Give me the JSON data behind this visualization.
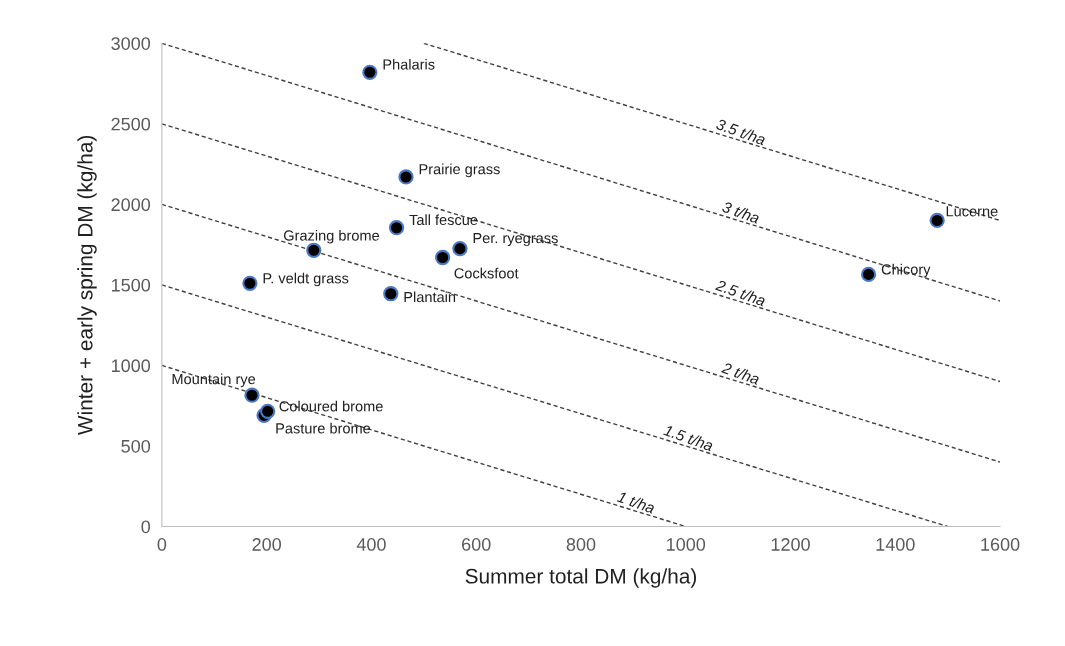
{
  "chart_data": {
    "type": "scatter",
    "xlabel": "Summer total DM (kg/ha)",
    "ylabel": "Winter + early spring DM (kg/ha)",
    "xlim": [
      0,
      1600
    ],
    "ylim": [
      0,
      3000
    ],
    "xticks": [
      0,
      200,
      400,
      600,
      800,
      1000,
      1200,
      1400,
      1600
    ],
    "yticks": [
      0,
      500,
      1000,
      1500,
      2000,
      2500,
      3000
    ],
    "grid": false,
    "legend": false,
    "series": [
      {
        "marker": "circle",
        "color": "#000000",
        "x": [
          397,
          466,
          448,
          290,
          569,
          536,
          168,
          437,
          172,
          202,
          195,
          1480,
          1349
        ],
        "values": [
          2820,
          2170,
          1855,
          1715,
          1725,
          1670,
          1510,
          1445,
          815,
          715,
          690,
          1900,
          1565
        ]
      },
      {
        "type": "line",
        "name": "1 t/ha",
        "color": "#404040",
        "line_style": "dashed",
        "x": [
          0,
          1000
        ],
        "values": [
          1000,
          0
        ]
      },
      {
        "type": "line",
        "name": "1.5 t/ha",
        "color": "#404040",
        "line_style": "dashed",
        "x": [
          0,
          1500
        ],
        "values": [
          1500,
          0
        ]
      },
      {
        "type": "line",
        "name": "2 t/ha",
        "color": "#404040",
        "line_style": "dashed",
        "x": [
          0,
          1600
        ],
        "values": [
          2000,
          400
        ]
      },
      {
        "type": "line",
        "name": "2.5 t/ha",
        "color": "#404040",
        "line_style": "dashed",
        "x": [
          0,
          1600
        ],
        "values": [
          2500,
          900
        ]
      },
      {
        "type": "line",
        "name": "3 t/ha",
        "color": "#404040",
        "line_style": "dashed",
        "x": [
          0,
          1600
        ],
        "values": [
          3000,
          1400
        ]
      },
      {
        "type": "line",
        "name": "3.5 t/ha",
        "color": "#404040",
        "line_style": "dashed",
        "x": [
          500,
          1600
        ],
        "values": [
          3000,
          1900
        ]
      }
    ],
    "annotations": [
      {
        "text": "Phalaris",
        "x": 397,
        "y": 2820
      },
      {
        "text": "Prairie grass",
        "x": 466,
        "y": 2170
      },
      {
        "text": "Tall fescue",
        "x": 448,
        "y": 1855
      },
      {
        "text": "Grazing brome",
        "x": 290,
        "y": 1715
      },
      {
        "text": "Per. ryegrass",
        "x": 569,
        "y": 1725
      },
      {
        "text": "Cocksfoot",
        "x": 536,
        "y": 1670
      },
      {
        "text": "P. veldt grass",
        "x": 168,
        "y": 1510
      },
      {
        "text": "Plantain",
        "x": 437,
        "y": 1445
      },
      {
        "text": "Mountain rye",
        "x": 172,
        "y": 815
      },
      {
        "text": "Coloured brome",
        "x": 202,
        "y": 715
      },
      {
        "text": "Pasture brome",
        "x": 195,
        "y": 690
      },
      {
        "text": "Lucerne",
        "x": 1480,
        "y": 1900
      },
      {
        "text": "Chicory",
        "x": 1349,
        "y": 1565
      }
    ]
  }
}
